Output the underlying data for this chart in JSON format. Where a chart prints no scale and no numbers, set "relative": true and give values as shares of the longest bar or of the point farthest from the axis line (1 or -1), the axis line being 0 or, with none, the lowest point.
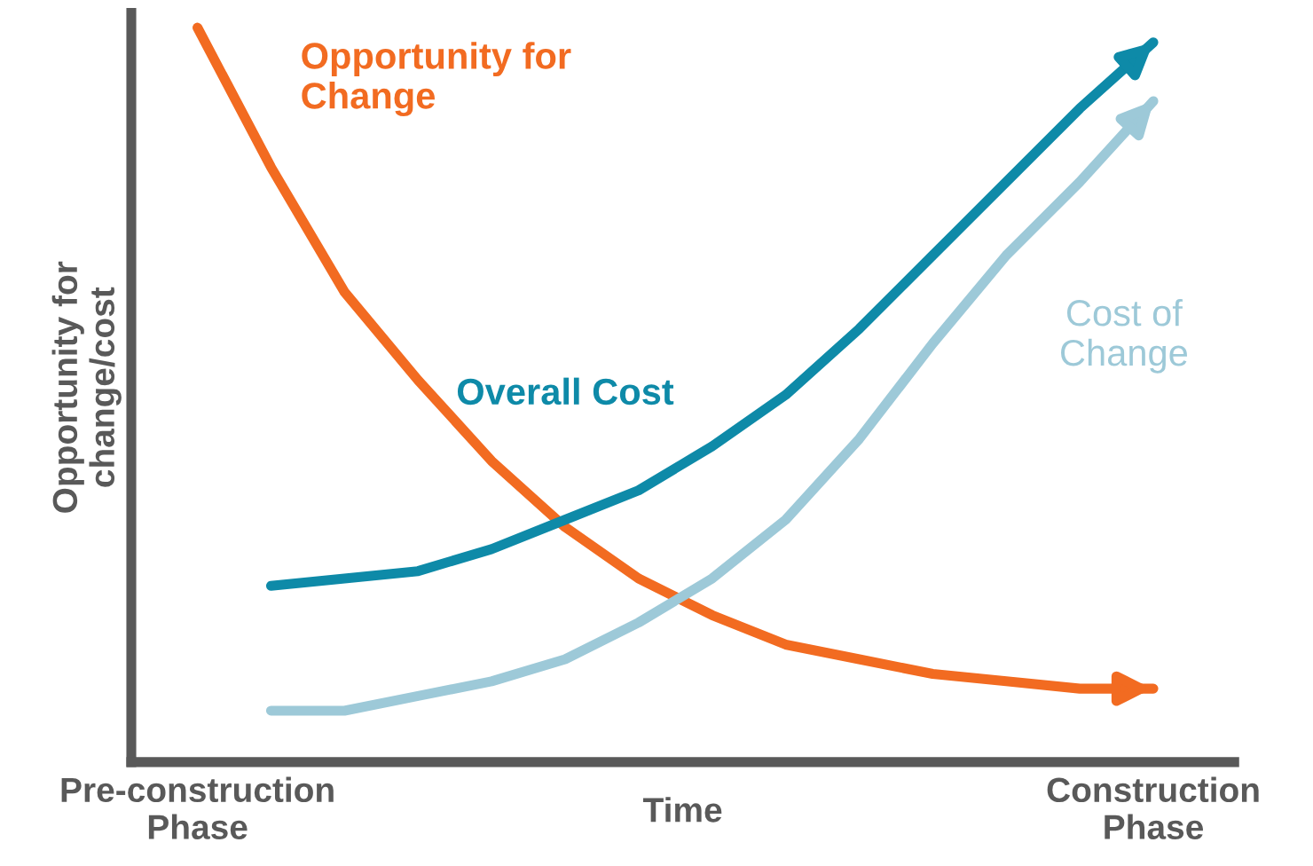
{
  "chart_data": {
    "type": "line",
    "relative": true,
    "xlabel": "Time",
    "ylabel": "Opportunity for\nchange/cost",
    "categories": [
      "Pre-construction\nPhase",
      null,
      null,
      null,
      null,
      null,
      null,
      null,
      null,
      null,
      null,
      null,
      null,
      "Construction\nPhase"
    ],
    "series": [
      {
        "name": "Opportunity for\nChange",
        "color": "#f26b21",
        "values": [
          1.0,
          0.81,
          0.64,
          0.52,
          0.41,
          0.32,
          0.25,
          0.2,
          0.16,
          0.14,
          0.12,
          0.11,
          0.1,
          0.1
        ]
      },
      {
        "name": "Overall Cost",
        "color": "#0e8aa8",
        "values": [
          null,
          0.24,
          0.25,
          0.26,
          0.29,
          0.33,
          0.37,
          0.43,
          0.5,
          0.59,
          0.69,
          0.79,
          0.89,
          0.98
        ]
      },
      {
        "name": "Cost of\nChange",
        "color": "#9dc9d8",
        "values": [
          null,
          0.07,
          0.07,
          0.09,
          0.11,
          0.14,
          0.19,
          0.25,
          0.33,
          0.44,
          0.57,
          0.69,
          0.79,
          0.9
        ]
      }
    ],
    "line_style": "solid"
  }
}
